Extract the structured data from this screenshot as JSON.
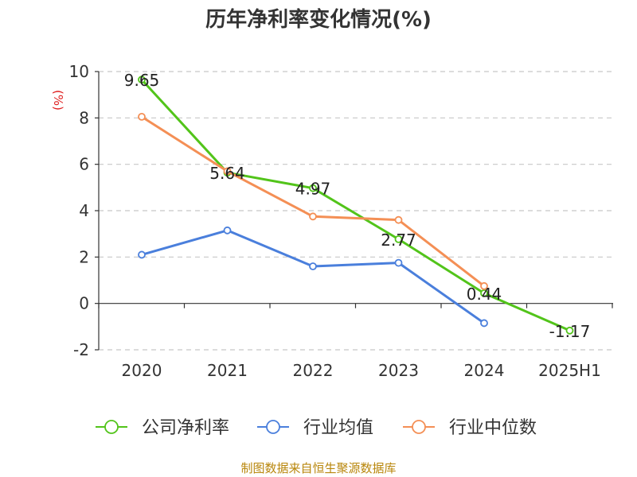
{
  "title": "历年净利率变化情况(%)",
  "source_text": "制图数据来自恒生聚源数据库",
  "chart_data": {
    "type": "line",
    "title": "历年净利率变化情况(%)",
    "ylabel": "(%)",
    "xlabel": "",
    "ylim": [
      -2,
      10
    ],
    "yticks": [
      -2,
      0,
      2,
      4,
      6,
      8,
      10
    ],
    "grid": true,
    "legend_position": "bottom",
    "categories": [
      "2020",
      "2021",
      "2022",
      "2023",
      "2024",
      "2025H1"
    ],
    "series": [
      {
        "name": "公司净利率",
        "color": "#52c41a",
        "values": [
          9.65,
          5.64,
          4.97,
          2.77,
          0.44,
          -1.17
        ],
        "labels": [
          "9.65",
          "5.64",
          "4.97",
          "2.77",
          "0.44",
          "-1.17"
        ]
      },
      {
        "name": "行业均值",
        "color": "#4a7fdc",
        "values": [
          2.1,
          3.15,
          1.6,
          1.75,
          -0.85,
          null
        ]
      },
      {
        "name": "行业中位数",
        "color": "#f48f55",
        "values": [
          8.05,
          5.7,
          3.75,
          3.6,
          0.75,
          null
        ]
      }
    ]
  }
}
